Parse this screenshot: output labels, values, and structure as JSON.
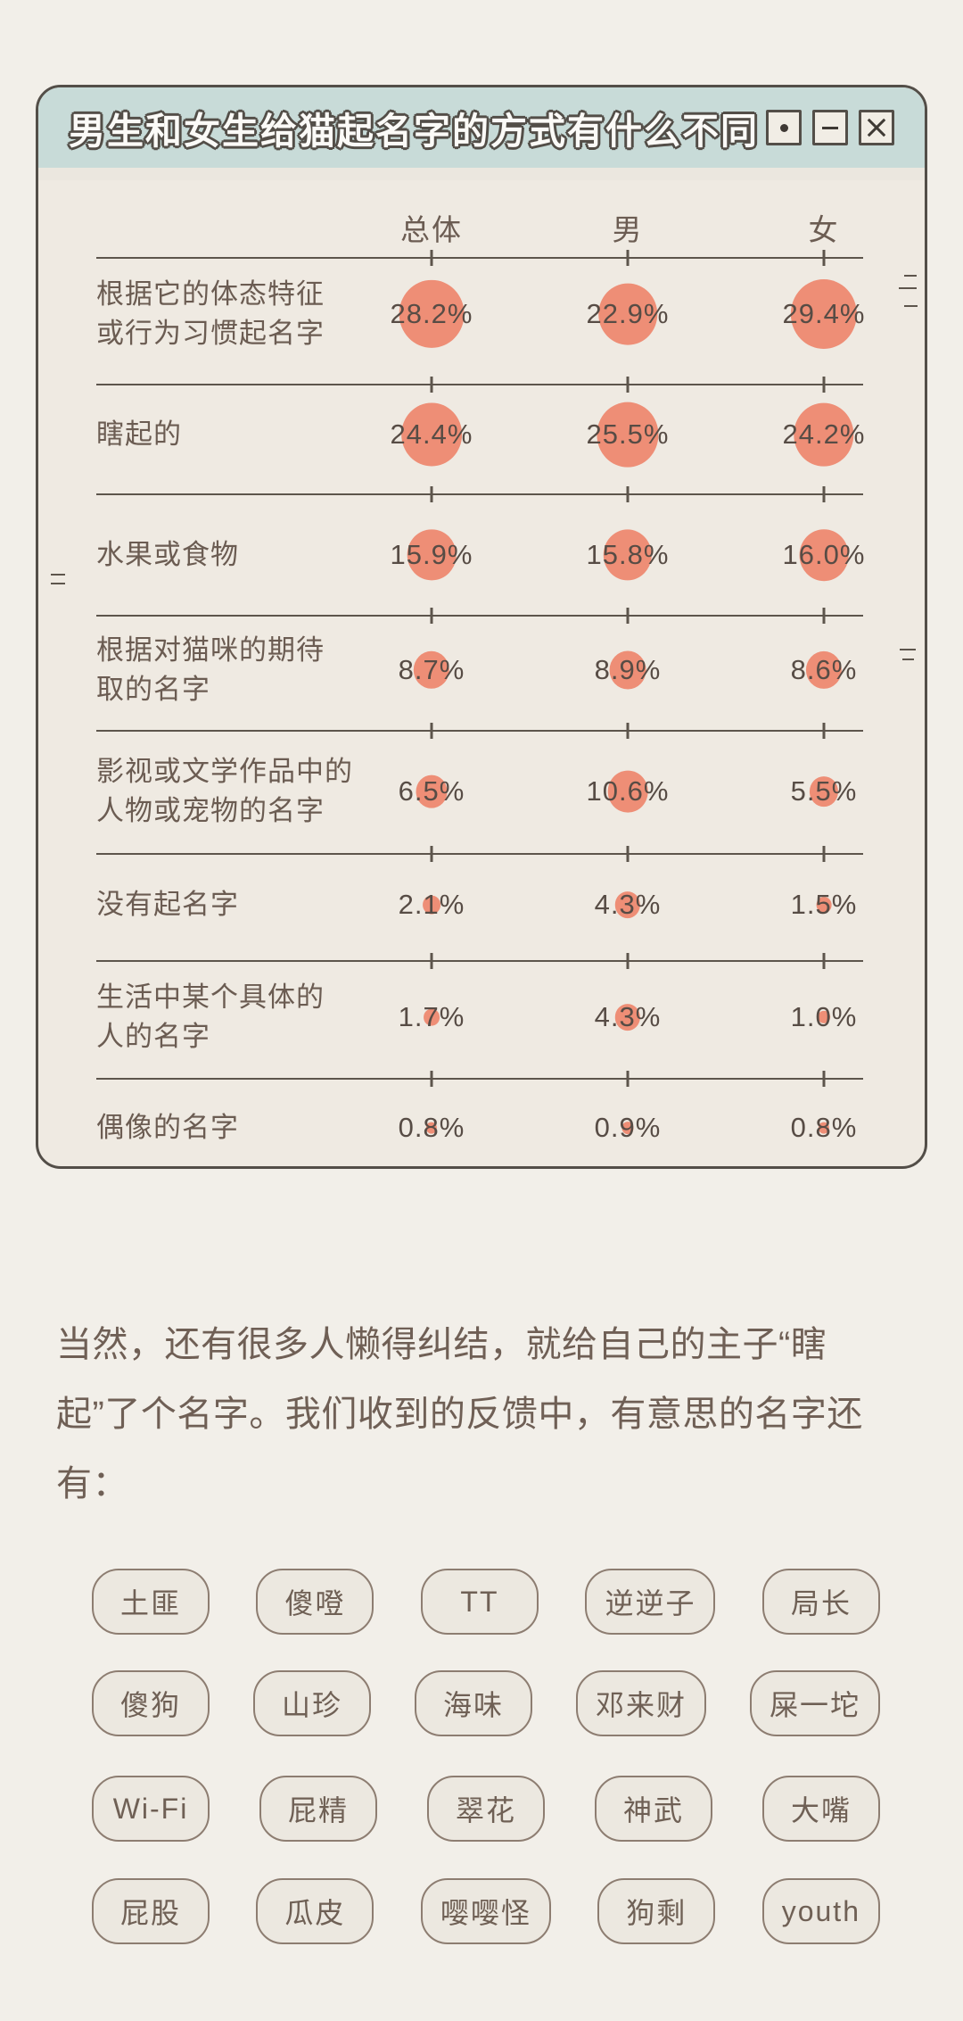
{
  "window": {
    "title": "男生和女生给猫起名字的方式有什么不同",
    "controls": [
      {
        "name": "dot",
        "icon": "dot-icon"
      },
      {
        "name": "minimize",
        "icon": "minus-icon"
      },
      {
        "name": "close",
        "icon": "close-icon"
      }
    ]
  },
  "chart_data": {
    "type": "bubble",
    "title": "男生和女生给猫起名字的方式有什么不同",
    "columns": [
      "总体",
      "男",
      "女"
    ],
    "rows": [
      {
        "label": "根据它的体态特征\n或行为习惯起名字",
        "values": [
          28.2,
          22.9,
          29.4
        ],
        "display": [
          "28.2%",
          "22.9%",
          "29.4%"
        ]
      },
      {
        "label": "瞎起的",
        "values": [
          24.4,
          25.5,
          24.2
        ],
        "display": [
          "24.4%",
          "25.5%",
          "24.2%"
        ]
      },
      {
        "label": "水果或食物",
        "values": [
          15.9,
          15.8,
          16.0
        ],
        "display": [
          "15.9%",
          "15.8%",
          "16.0%"
        ]
      },
      {
        "label": "根据对猫咪的期待\n取的名字",
        "values": [
          8.7,
          8.9,
          8.6
        ],
        "display": [
          "8.7%",
          "8.9%",
          "8.6%"
        ]
      },
      {
        "label": "影视或文学作品中的\n人物或宠物的名字",
        "values": [
          6.5,
          10.6,
          5.5
        ],
        "display": [
          "6.5%",
          "10.6%",
          "5.5%"
        ]
      },
      {
        "label": "没有起名字",
        "values": [
          2.1,
          4.3,
          1.5
        ],
        "display": [
          "2.1%",
          "4.3%",
          "1.5%"
        ]
      },
      {
        "label": "生活中某个具体的\n人的名字",
        "values": [
          1.7,
          4.3,
          1.0
        ],
        "display": [
          "1.7%",
          "4.3%",
          "1.0%"
        ]
      },
      {
        "label": "偶像的名字",
        "values": [
          0.8,
          0.9,
          0.8
        ],
        "display": [
          "0.8%",
          "0.9%",
          "0.8%"
        ]
      }
    ],
    "unit": "%",
    "bubble_color": "#ee8e76",
    "legend_position": "none",
    "grid": "row-dividers-with-ticks"
  },
  "paragraph": "当然，还有很多人懒得纠结，就给自己的主子“瞎起”了个名字。我们收到的反馈中，有意思的名字还有：",
  "tags": [
    [
      "土匪",
      "傻噔",
      "TT",
      "逆逆子",
      "局长"
    ],
    [
      "傻狗",
      "山珍",
      "海味",
      "邓来财",
      "屎一坨"
    ],
    [
      "Wi-Fi",
      "屁精",
      "翠花",
      "神武",
      "大嘴"
    ],
    [
      "屁股",
      "瓜皮",
      "嘤嘤怪",
      "狗剩",
      "youth"
    ]
  ],
  "colors": {
    "page_bg": "#f2efe9",
    "card_bg": "#efeae2",
    "titlebar_bg": "#c8dbd8",
    "bubble": "#ee8e76",
    "outline_ink": "#534e48",
    "text": "#6b5c52"
  }
}
